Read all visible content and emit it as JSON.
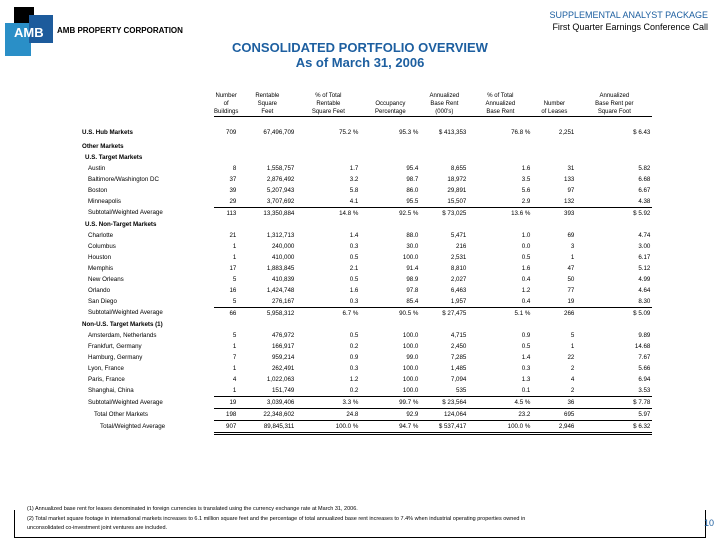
{
  "header": {
    "logo_text": "AMB",
    "company": "AMB PROPERTY CORPORATION",
    "package": "SUPPLEMENTAL ANALYST PACKAGE",
    "call": "First Quarter Earnings Conference Call",
    "title": "CONSOLIDATED PORTFOLIO OVERVIEW",
    "subtitle": "As of March 31, 2006"
  },
  "columns": [
    [
      "Number",
      "of",
      "Buildings"
    ],
    [
      "Rentable",
      "Square",
      "Feet"
    ],
    [
      "% of Total",
      "Rentable",
      "Square Feet"
    ],
    [
      "",
      "Occupancy",
      "Percentage"
    ],
    [
      "Annualized",
      "Base Rent",
      "(000's)"
    ],
    [
      "% of Total",
      "Annualized",
      "Base Rent"
    ],
    [
      "",
      "Number",
      "of Leases"
    ],
    [
      "Annualized",
      "Base Rent per",
      "Square Foot"
    ]
  ],
  "rows": [
    {
      "label": "U.S. Hub Markets",
      "type": "sec",
      "v": [
        "709",
        "67,496,709",
        "75.2 %",
        "95.3 %",
        "$ 413,353",
        "76.8 %",
        "2,251",
        "$ 6.43"
      ]
    },
    {
      "label": "Other Markets",
      "type": "head"
    },
    {
      "label": "U.S. Target Markets",
      "type": "head"
    },
    {
      "label": "Austin",
      "v": [
        "8",
        "1,558,757",
        "1.7",
        "95.4",
        "8,655",
        "1.6",
        "31",
        "5.82"
      ]
    },
    {
      "label": "Baltimore/Washington DC",
      "v": [
        "37",
        "2,876,492",
        "3.2",
        "98.7",
        "18,972",
        "3.5",
        "133",
        "6.68"
      ]
    },
    {
      "label": "Boston",
      "v": [
        "39",
        "5,207,943",
        "5.8",
        "86.0",
        "29,891",
        "5.6",
        "97",
        "6.67"
      ]
    },
    {
      "label": "Minneapolis",
      "type": "ul",
      "v": [
        "29",
        "3,707,692",
        "4.1",
        "95.5",
        "15,507",
        "2.9",
        "132",
        "4.38"
      ]
    },
    {
      "label": "Subtotal/Weighted Average",
      "type": "sub",
      "v": [
        "113",
        "13,350,884",
        "14.8 %",
        "92.5 %",
        "$ 73,025",
        "13.6 %",
        "393",
        "$ 5.92"
      ]
    },
    {
      "label": "U.S. Non-Target Markets",
      "type": "head"
    },
    {
      "label": "Charlotte",
      "v": [
        "21",
        "1,312,713",
        "1.4",
        "88.0",
        "5,471",
        "1.0",
        "69",
        "4.74"
      ]
    },
    {
      "label": "Columbus",
      "v": [
        "1",
        "240,000",
        "0.3",
        "30.0",
        "216",
        "0.0",
        "3",
        "3.00"
      ]
    },
    {
      "label": "Houston",
      "v": [
        "1",
        "410,000",
        "0.5",
        "100.0",
        "2,531",
        "0.5",
        "1",
        "6.17"
      ]
    },
    {
      "label": "Memphis",
      "v": [
        "17",
        "1,883,845",
        "2.1",
        "91.4",
        "8,810",
        "1.6",
        "47",
        "5.12"
      ]
    },
    {
      "label": "New Orleans",
      "v": [
        "5",
        "410,839",
        "0.5",
        "98.9",
        "2,027",
        "0.4",
        "50",
        "4.99"
      ]
    },
    {
      "label": "Orlando",
      "v": [
        "16",
        "1,424,748",
        "1.6",
        "97.8",
        "6,463",
        "1.2",
        "77",
        "4.64"
      ]
    },
    {
      "label": "San Diego",
      "type": "ul",
      "v": [
        "5",
        "276,167",
        "0.3",
        "85.4",
        "1,957",
        "0.4",
        "19",
        "8.30"
      ]
    },
    {
      "label": "Subtotal/Weighted Average",
      "type": "sub",
      "v": [
        "66",
        "5,958,312",
        "6.7 %",
        "90.5 %",
        "$ 27,475",
        "5.1 %",
        "266",
        "$ 5.09"
      ]
    },
    {
      "label": "Non-U.S. Target Markets (1)",
      "type": "head"
    },
    {
      "label": "Amsterdam, Netherlands",
      "v": [
        "5",
        "476,972",
        "0.5",
        "100.0",
        "4,715",
        "0.9",
        "5",
        "9.89"
      ]
    },
    {
      "label": "Frankfurt, Germany",
      "v": [
        "1",
        "166,917",
        "0.2",
        "100.0",
        "2,450",
        "0.5",
        "1",
        "14.68"
      ]
    },
    {
      "label": "Hamburg, Germany",
      "v": [
        "7",
        "959,214",
        "0.9",
        "99.0",
        "7,285",
        "1.4",
        "22",
        "7.67"
      ]
    },
    {
      "label": "Lyon, France",
      "v": [
        "1",
        "262,491",
        "0.3",
        "100.0",
        "1,485",
        "0.3",
        "2",
        "5.66"
      ]
    },
    {
      "label": "Paris, France",
      "v": [
        "4",
        "1,022,063",
        "1.2",
        "100.0",
        "7,094",
        "1.3",
        "4",
        "6.94"
      ]
    },
    {
      "label": "Shanghai, China",
      "type": "ul",
      "v": [
        "1",
        "151,749",
        "0.2",
        "100.0",
        "535",
        "0.1",
        "2",
        "3.53"
      ]
    },
    {
      "label": "Subtotal/Weighted Average",
      "type": "subul",
      "v": [
        "19",
        "3,039,406",
        "3.3 %",
        "99.7 %",
        "$ 23,564",
        "4.5 %",
        "36",
        "$ 7.78"
      ]
    },
    {
      "label": "Total Other Markets",
      "type": "tot",
      "v": [
        "198",
        "22,348,602",
        "24.8",
        "92.9",
        "124,064",
        "23.2",
        "695",
        "5.97"
      ]
    },
    {
      "label": "Total/Weighted Average",
      "type": "grand",
      "v": [
        "907",
        "89,845,311",
        "100.0 %",
        "94.7 %",
        "$ 537,417",
        "100.0 %",
        "2,946",
        "$ 6.32"
      ]
    }
  ],
  "footnotes": [
    "(1)   Annualized base rent for leases denominated in foreign currencies is translated using the currency exchange rate at March 31, 2006.",
    "(2)   Total market square footage in international markets increases to 6.1 million square feet and the percentage of total annualized base rent increases to 7.4% when industrial operating properties owned in",
    "        unconsolidated co-investment joint ventures are included."
  ],
  "page_number": "10"
}
